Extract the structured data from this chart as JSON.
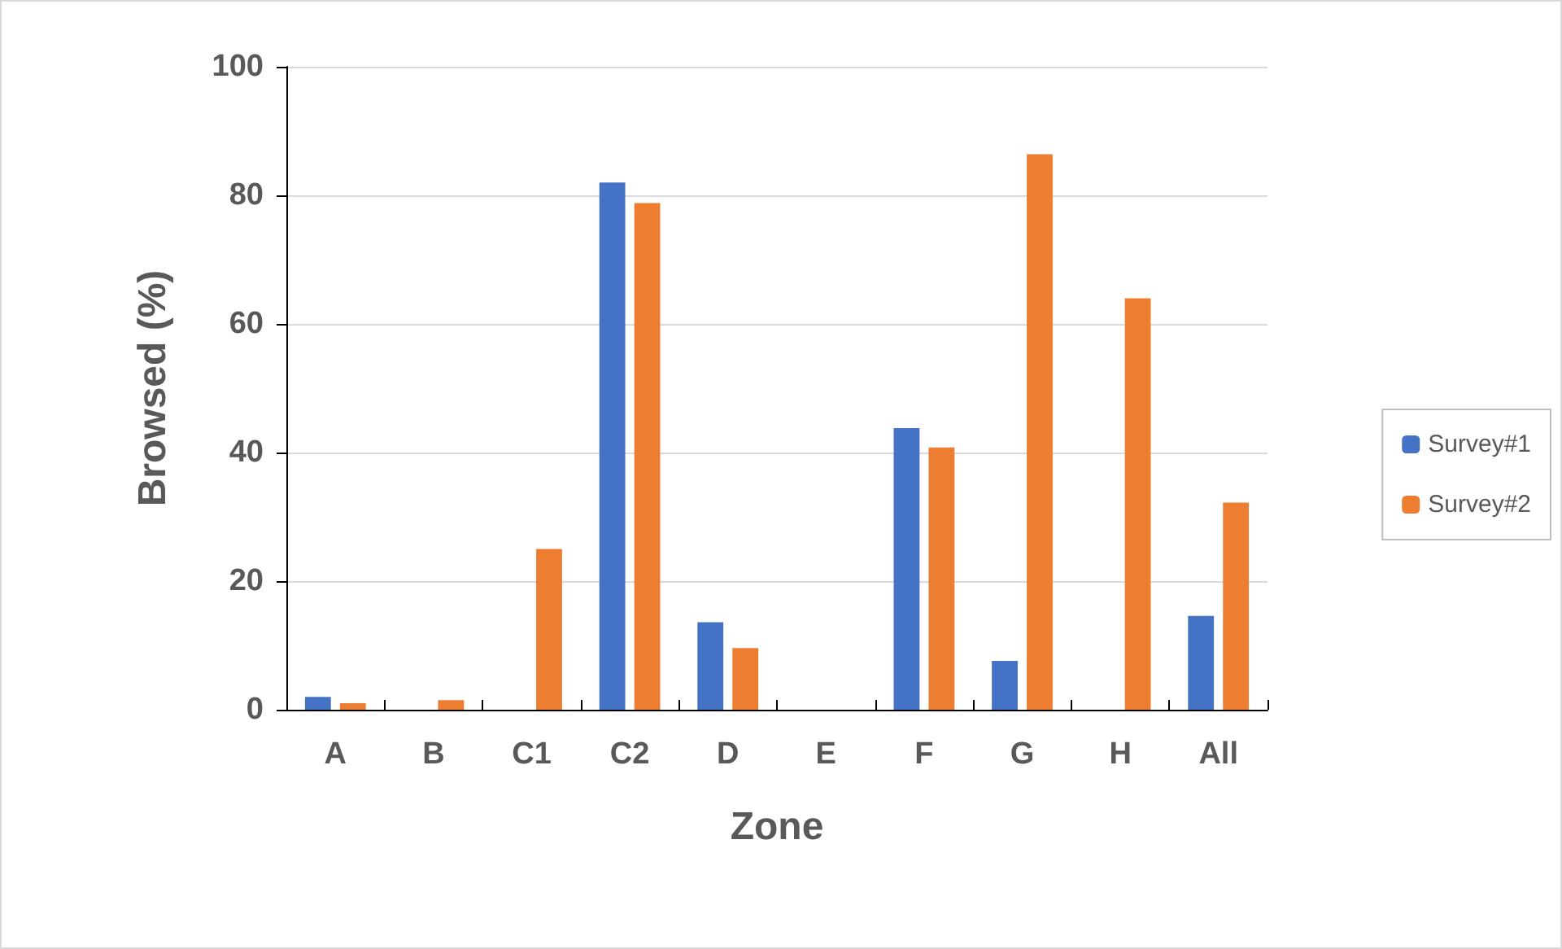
{
  "chart_data": {
    "type": "bar",
    "xlabel": "Zone",
    "ylabel": "Browsed (%)",
    "categories": [
      "A",
      "B",
      "C1",
      "C2",
      "D",
      "E",
      "F",
      "G",
      "H",
      "All"
    ],
    "series": [
      {
        "name": "Survey#1",
        "color": "#4472c4",
        "values": [
          2,
          0,
          0,
          82,
          13.6,
          0,
          43.8,
          7.6,
          0,
          14.6
        ]
      },
      {
        "name": "Survey#2",
        "color": "#ed7d31",
        "values": [
          1,
          1.5,
          25,
          78.8,
          9.6,
          0,
          40.8,
          86.4,
          64,
          32.2
        ]
      }
    ],
    "ylim": [
      0,
      100
    ],
    "yticks": [
      0,
      20,
      40,
      60,
      80,
      100
    ],
    "grid": "y",
    "legend": "right"
  }
}
